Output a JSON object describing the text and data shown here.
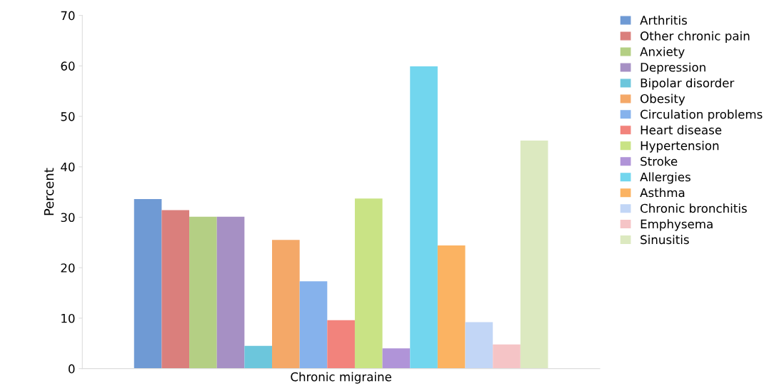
{
  "chart_data": {
    "type": "bar",
    "ylabel": "Percent",
    "categories": [
      "Chronic migraine"
    ],
    "ylim": [
      0,
      70
    ],
    "yticks": [
      0,
      10,
      20,
      30,
      40,
      50,
      60,
      70
    ],
    "grid": false,
    "legend": "top right",
    "series": [
      {
        "name": "Arthritis",
        "color": "#6f9ad4",
        "values": [
          33.6
        ]
      },
      {
        "name": "Other chronic pain",
        "color": "#da7f7c",
        "values": [
          31.4
        ]
      },
      {
        "name": "Anxiety",
        "color": "#b4cf84",
        "values": [
          30.1
        ]
      },
      {
        "name": "Depression",
        "color": "#a690c4",
        "values": [
          30.1
        ]
      },
      {
        "name": "Bipolar disorder",
        "color": "#6cc6dc",
        "values": [
          4.5
        ]
      },
      {
        "name": "Obesity",
        "color": "#f4a868",
        "values": [
          25.5
        ]
      },
      {
        "name": "Circulation problems",
        "color": "#86b2ec",
        "values": [
          17.3
        ]
      },
      {
        "name": "Heart disease",
        "color": "#f2837c",
        "values": [
          9.6
        ]
      },
      {
        "name": "Hypertension",
        "color": "#c9e385",
        "values": [
          33.7
        ]
      },
      {
        "name": "Stroke",
        "color": "#b094d8",
        "values": [
          4.0
        ]
      },
      {
        "name": "Allergies",
        "color": "#72d6ee",
        "values": [
          59.9
        ]
      },
      {
        "name": "Asthma",
        "color": "#fbb362",
        "values": [
          24.4
        ]
      },
      {
        "name": "Chronic bronchitis",
        "color": "#c2d6f6",
        "values": [
          9.2
        ]
      },
      {
        "name": "Emphysema",
        "color": "#f5c4c6",
        "values": [
          4.8
        ]
      },
      {
        "name": "Sinusitis",
        "color": "#dce9c0",
        "values": [
          45.2
        ]
      }
    ]
  }
}
